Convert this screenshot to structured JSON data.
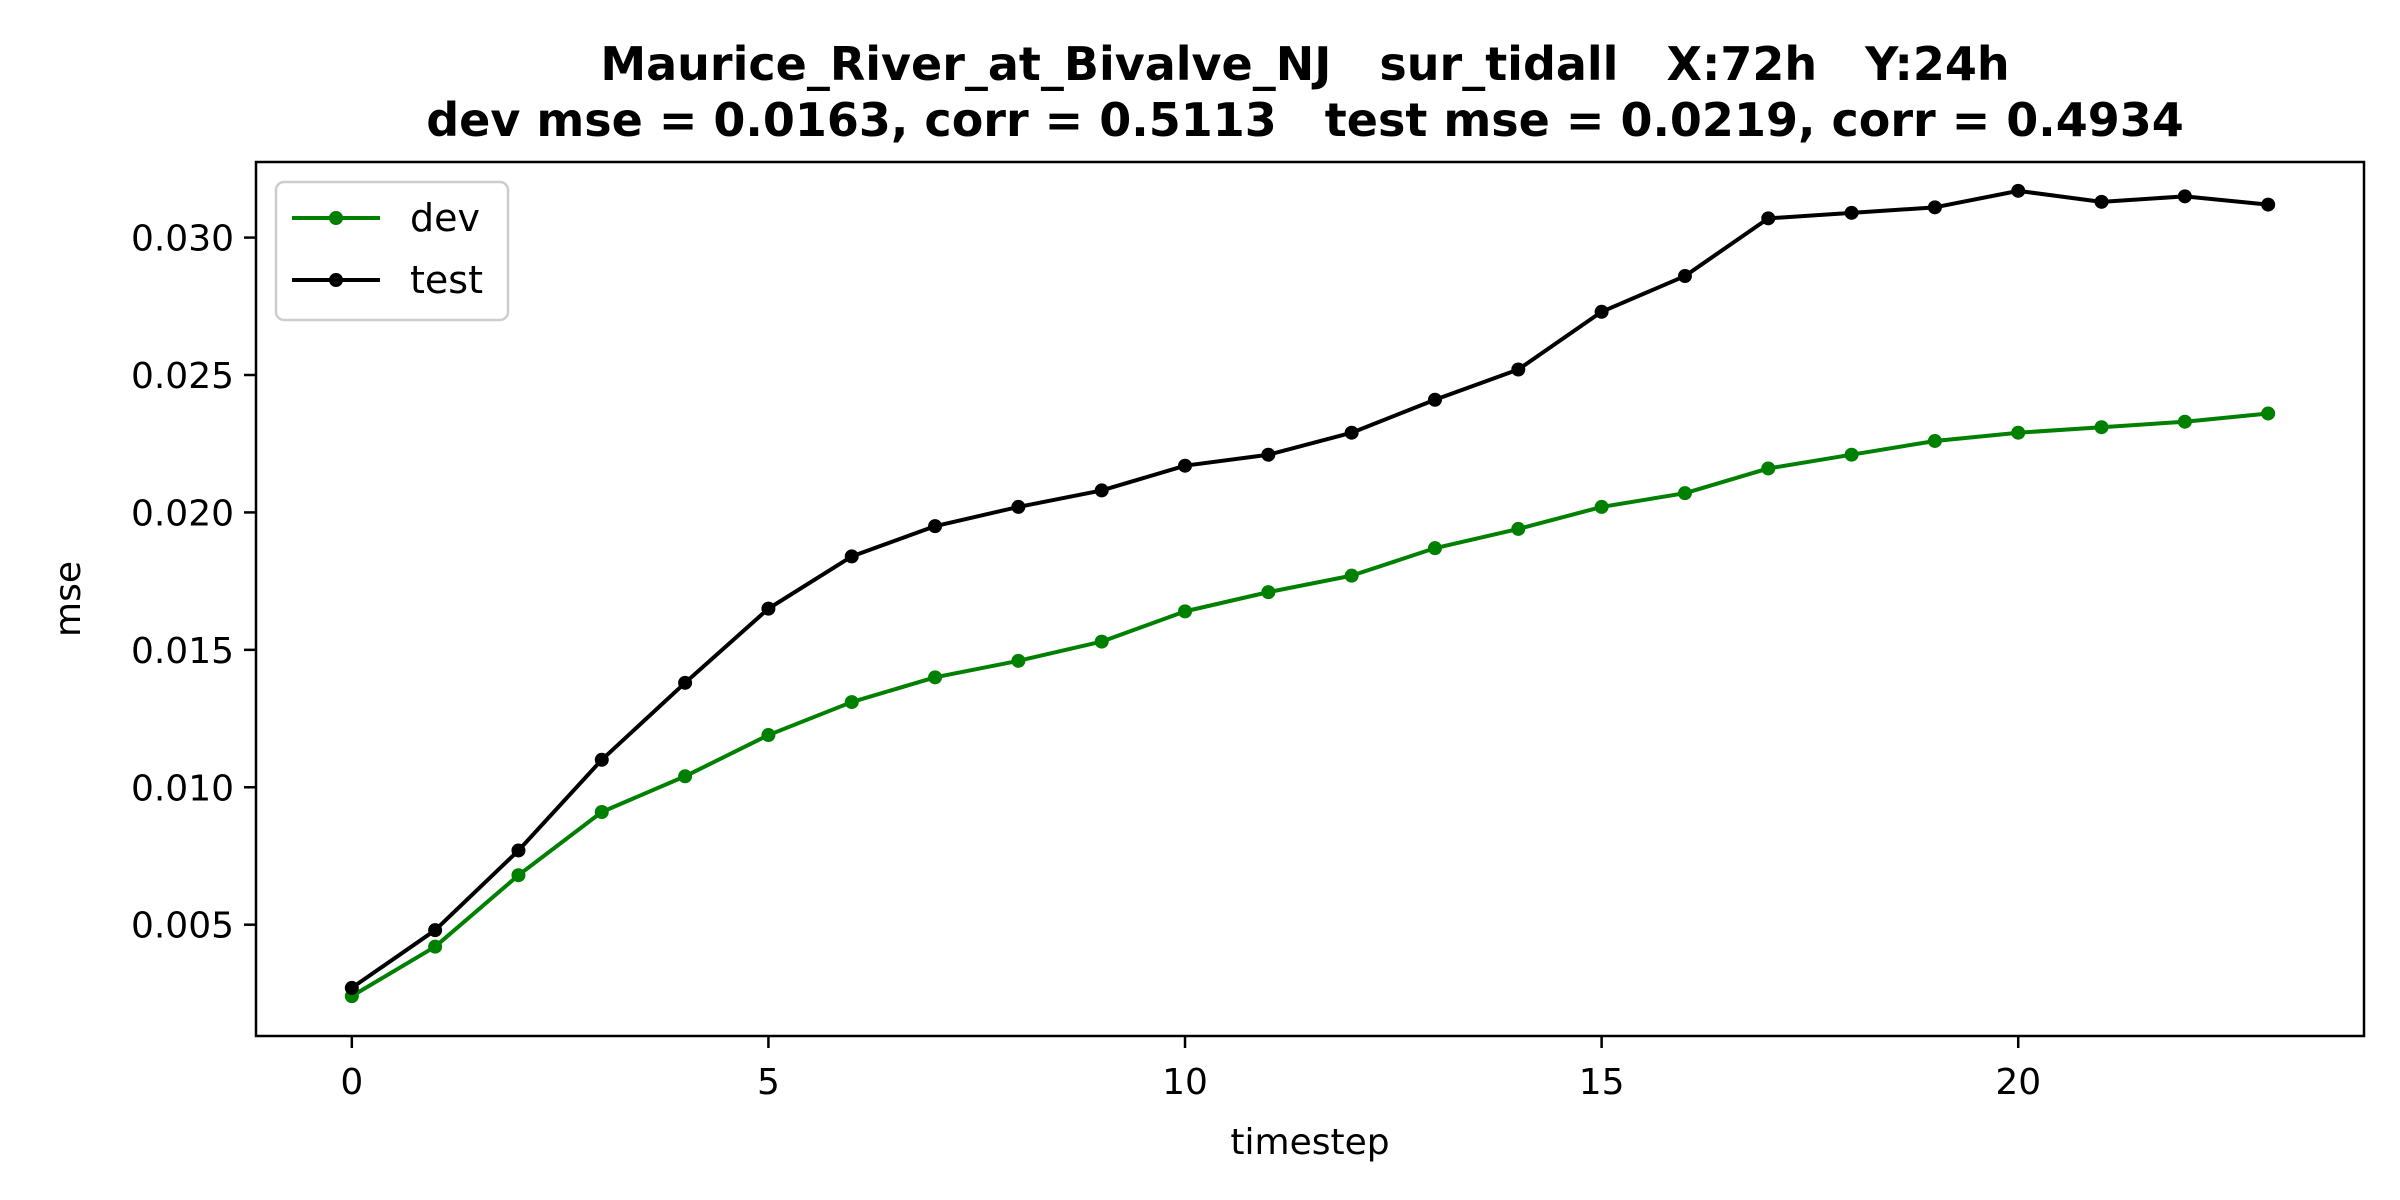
{
  "chart_data": {
    "type": "line",
    "title": "Maurice_River_at_Bivalve_NJ   sur_tidall   X:72h   Y:24h",
    "subtitle": "dev mse = 0.0163, corr = 0.5113   test mse = 0.0219, corr = 0.4934",
    "xlabel": "timestep",
    "ylabel": "mse",
    "xlim": [
      -1.15,
      24.15
    ],
    "ylim": [
      0.00095,
      0.03275
    ],
    "x_ticks": [
      0,
      5,
      10,
      15,
      20
    ],
    "y_ticks": [
      0.005,
      0.01,
      0.015,
      0.02,
      0.025,
      0.03
    ],
    "y_tick_labels": [
      "0.005",
      "0.010",
      "0.015",
      "0.020",
      "0.025",
      "0.030"
    ],
    "grid": false,
    "legend_position": "top-left",
    "x": [
      0,
      1,
      2,
      3,
      4,
      5,
      6,
      7,
      8,
      9,
      10,
      11,
      12,
      13,
      14,
      15,
      16,
      17,
      18,
      19,
      20,
      21,
      22,
      23
    ],
    "series": [
      {
        "name": "dev",
        "color": "#008000",
        "values": [
          0.0024,
          0.0042,
          0.0068,
          0.0091,
          0.0104,
          0.0119,
          0.0131,
          0.014,
          0.0146,
          0.0153,
          0.0164,
          0.0171,
          0.0177,
          0.0187,
          0.0194,
          0.0202,
          0.0207,
          0.0216,
          0.0221,
          0.0226,
          0.0229,
          0.0231,
          0.0233,
          0.0236
        ]
      },
      {
        "name": "test",
        "color": "#000000",
        "values": [
          0.0027,
          0.0048,
          0.0077,
          0.011,
          0.0138,
          0.0165,
          0.0184,
          0.0195,
          0.0202,
          0.0208,
          0.0217,
          0.0221,
          0.0229,
          0.0241,
          0.0252,
          0.0273,
          0.0286,
          0.0307,
          0.0309,
          0.0311,
          0.0317,
          0.0313,
          0.0315,
          0.0312
        ]
      }
    ]
  }
}
